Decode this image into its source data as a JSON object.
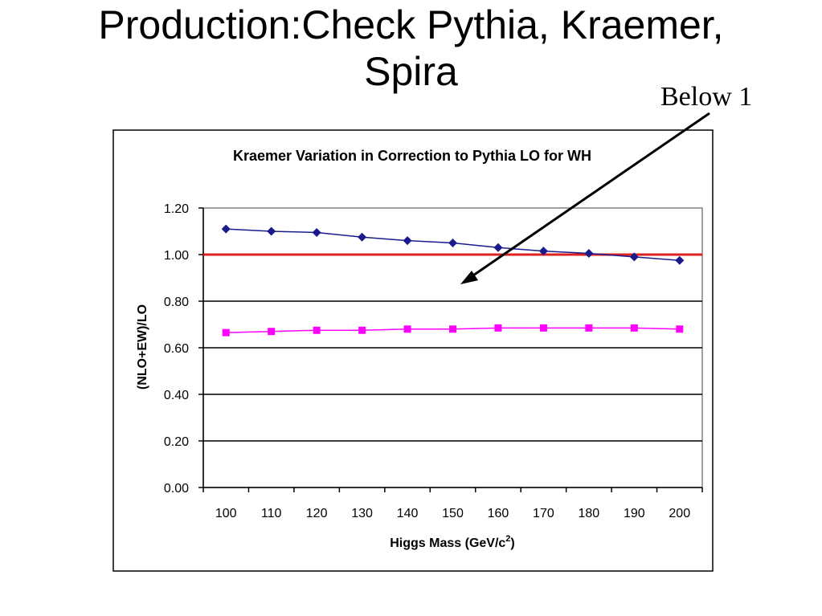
{
  "slide": {
    "title_line1": "Production:Check Pythia, Kraemer,",
    "title_line2": "Spira",
    "annotation": "Below 1"
  },
  "chart_data": {
    "type": "line",
    "title": "Kraemer Variation in Correction to Pythia LO for WH",
    "xlabel": "Higgs Mass (GeV/c",
    "xlabel_superscript": "2",
    "xlabel_suffix": ")",
    "ylabel": "(NLO+EW)/LO",
    "categories": [
      "100",
      "110",
      "120",
      "130",
      "140",
      "150",
      "160",
      "170",
      "180",
      "190",
      "200"
    ],
    "ylim": [
      0,
      1.2
    ],
    "yticks": [
      "0.00",
      "0.20",
      "0.40",
      "0.60",
      "0.80",
      "1.00",
      "1.20"
    ],
    "grid": true,
    "reference_line": {
      "value": 1.0,
      "color": "#dd2222"
    },
    "series": [
      {
        "values": [
          1.11,
          1.1,
          1.095,
          1.075,
          1.06,
          1.05,
          1.03,
          1.015,
          1.005,
          0.99,
          0.975
        ],
        "color": "#1a1a8c",
        "marker": "diamond"
      },
      {
        "values": [
          0.665,
          0.67,
          0.675,
          0.675,
          0.68,
          0.68,
          0.685,
          0.685,
          0.685,
          0.685,
          0.68
        ],
        "color": "#ff00ff",
        "marker": "square"
      }
    ]
  }
}
